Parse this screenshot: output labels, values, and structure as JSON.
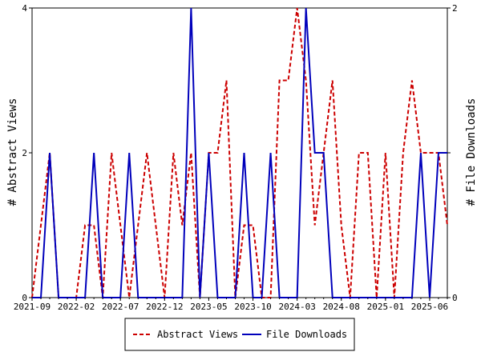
{
  "chart_data": {
    "type": "line",
    "title": "",
    "xlabel": "",
    "ylabel_left": "# Abstract Views",
    "ylabel_right": "# File Downloads",
    "x_tick_labels": [
      "2021-09",
      "2022-02",
      "2022-07",
      "2022-12",
      "2023-05",
      "2023-10",
      "2024-03",
      "2024-08",
      "2025-01",
      "2025-06"
    ],
    "y_left_ticks": [
      "0",
      "2",
      "4"
    ],
    "y_right_ticks": [
      "0",
      "1",
      "2"
    ],
    "ylim_left": [
      0,
      4
    ],
    "ylim_right": [
      0,
      2
    ],
    "x": [
      "2021-09",
      "2021-10",
      "2021-11",
      "2021-12",
      "2022-01",
      "2022-02",
      "2022-03",
      "2022-04",
      "2022-05",
      "2022-06",
      "2022-07",
      "2022-08",
      "2022-09",
      "2022-10",
      "2022-11",
      "2022-12",
      "2023-01",
      "2023-02",
      "2023-03",
      "2023-04",
      "2023-05",
      "2023-06",
      "2023-07",
      "2023-08",
      "2023-09",
      "2023-10",
      "2023-11",
      "2023-12",
      "2024-01",
      "2024-02",
      "2024-03",
      "2024-04",
      "2024-05",
      "2024-06",
      "2024-07",
      "2024-08",
      "2024-09",
      "2024-10",
      "2024-11",
      "2024-12",
      "2025-01",
      "2025-02",
      "2025-03",
      "2025-04",
      "2025-05",
      "2025-06",
      "2025-07",
      "2025-08"
    ],
    "series": [
      {
        "name": "Abstract Views",
        "axis": "left",
        "color": "#cc0000",
        "dash": "dashed",
        "values": [
          0,
          1,
          2,
          0,
          0,
          0,
          1,
          1,
          0,
          2,
          1,
          0,
          1,
          2,
          1,
          0,
          2,
          1,
          2,
          0,
          2,
          2,
          3,
          0,
          1,
          1,
          0,
          0,
          3,
          3,
          4,
          3,
          1,
          2,
          3,
          1,
          0,
          2,
          2,
          0,
          2,
          0,
          2,
          3,
          2,
          2,
          2,
          1
        ]
      },
      {
        "name": "File Downloads",
        "axis": "right",
        "color": "#0000bb",
        "dash": "solid",
        "values": [
          0,
          0,
          1,
          0,
          0,
          0,
          0,
          1,
          0,
          0,
          0,
          1,
          0,
          0,
          0,
          0,
          0,
          0,
          2,
          0,
          1,
          0,
          0,
          0,
          1,
          0,
          0,
          1,
          0,
          0,
          0,
          2,
          1,
          1,
          0,
          0,
          0,
          0,
          0,
          0,
          0,
          0,
          0,
          0,
          1,
          0,
          1,
          1
        ]
      }
    ],
    "legend": {
      "placement": "bottom-center",
      "entries": [
        "Abstract Views",
        "File Downloads"
      ]
    },
    "grid": false
  }
}
